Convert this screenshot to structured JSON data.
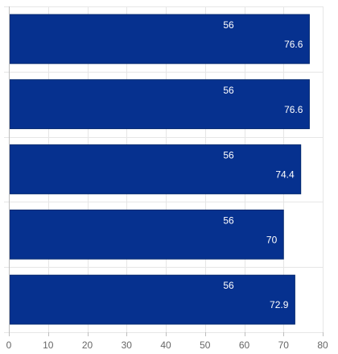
{
  "chart_data": {
    "type": "bar",
    "orientation": "horizontal",
    "categories": [
      "",
      "",
      "",
      "",
      ""
    ],
    "series": [
      {
        "values": [
          56,
          56,
          56,
          56,
          56
        ]
      },
      {
        "values": [
          76.6,
          76.6,
          74.4,
          70,
          72.9
        ]
      }
    ],
    "x_ticks": [
      0,
      10,
      20,
      30,
      40,
      50,
      60,
      70,
      80
    ],
    "xlim": [
      0,
      80
    ],
    "grid": true,
    "title": "",
    "xlabel": "",
    "ylabel": ""
  },
  "colors": {
    "bar": "#06318f",
    "bar_edge": "#03286f",
    "grid": "#e6e6e6",
    "axis": "#bdbdbd",
    "value_text": "#ffffff"
  }
}
